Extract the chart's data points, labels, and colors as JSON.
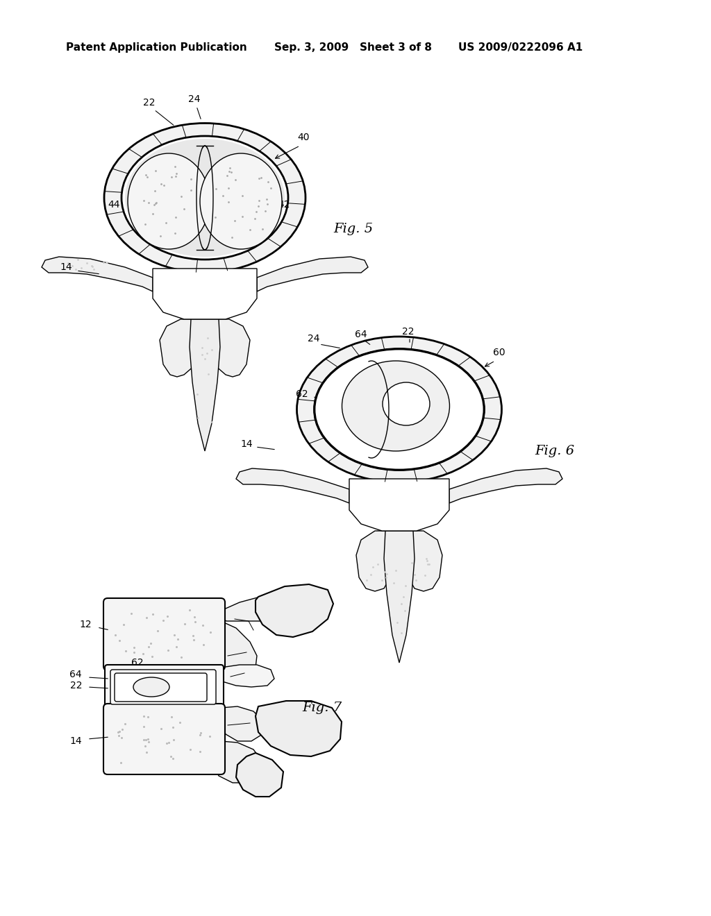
{
  "background_color": "#ffffff",
  "header_left": "Patent Application Publication",
  "header_center": "Sep. 3, 2009   Sheet 3 of 8",
  "header_right": "US 2009/0222096 A1",
  "fig5_label": "Fig. 5",
  "fig6_label": "Fig. 6",
  "fig7_label": "Fig. 7",
  "line_color": "#000000",
  "text_color": "#000000",
  "annotation_fontsize": 10,
  "fig_label_fontsize": 14,
  "header_fontsize": 11
}
